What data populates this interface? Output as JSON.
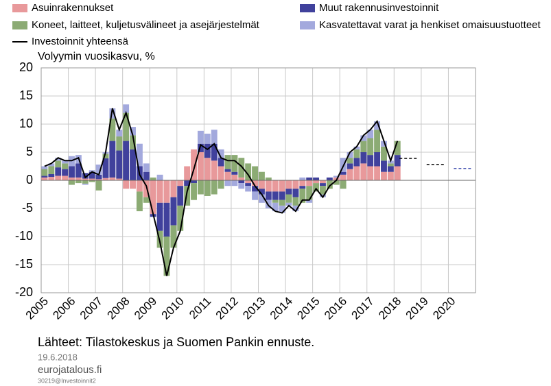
{
  "chart_data": {
    "type": "bar",
    "title": "Volyymin vuosikasvu, %",
    "x": [
      2005,
      2005.25,
      2005.5,
      2005.75,
      2006,
      2006.25,
      2006.5,
      2006.75,
      2007,
      2007.25,
      2007.5,
      2007.75,
      2008,
      2008.25,
      2008.5,
      2008.75,
      2009,
      2009.25,
      2009.5,
      2009.75,
      2010,
      2010.25,
      2010.5,
      2010.75,
      2011,
      2011.25,
      2011.5,
      2011.75,
      2012,
      2012.25,
      2012.5,
      2012.75,
      2013,
      2013.25,
      2013.5,
      2013.75,
      2014,
      2014.25,
      2014.5,
      2014.75,
      2015,
      2015.25,
      2015.5,
      2015.75,
      2016,
      2016.25,
      2016.5,
      2016.75,
      2017,
      2017.25,
      2017.5,
      2017.75,
      2018
    ],
    "series": [
      {
        "name": "Asuinrakennukset",
        "color": "#e8999b",
        "values": [
          0.5,
          0.6,
          0.8,
          0.8,
          0.5,
          0.5,
          0.3,
          0.3,
          0.2,
          0.4,
          0.5,
          0.3,
          -1.5,
          -1.5,
          -2,
          -3,
          -6,
          -4,
          -4,
          -3,
          -1,
          2.5,
          5.5,
          5,
          4,
          3.5,
          2.5,
          1.5,
          1,
          0.5,
          -0.5,
          -1,
          -1.5,
          -2,
          -2,
          -2,
          -1.5,
          -1.5,
          -1,
          -1,
          -0.5,
          -0.5,
          0,
          0.5,
          1,
          2,
          2.5,
          3,
          2.5,
          2.5,
          1.5,
          1.5,
          2.5
        ]
      },
      {
        "name": "Muut rakennusinvestoinnit",
        "color": "#40419c",
        "values": [
          0.3,
          0.5,
          1.5,
          1.2,
          2,
          2.5,
          1,
          1.2,
          0.8,
          3.5,
          6.5,
          5,
          7,
          5.5,
          2.5,
          1.5,
          -0.5,
          -5,
          -6,
          -5,
          -3.5,
          -1,
          -0.5,
          1.5,
          2.5,
          3,
          1.5,
          0.5,
          0.5,
          -0.5,
          -0.5,
          -1,
          -1,
          -1.5,
          -1.5,
          -1.5,
          -1,
          -1.5,
          -0.5,
          0.5,
          0.5,
          -0.5,
          0.5,
          0,
          0.5,
          1,
          1.5,
          2,
          2,
          2.5,
          2,
          1,
          2
        ]
      },
      {
        "name": "Koneet, laitteet, kuljetusvälineet ja asejärjestelmät",
        "color": "#8cab74",
        "values": [
          1.2,
          1.4,
          1.2,
          1,
          -0.8,
          -0.5,
          -0.6,
          -0.3,
          -1.8,
          0.8,
          4,
          2.5,
          5,
          2.5,
          -3.5,
          -1,
          0.5,
          -3,
          -7,
          -4,
          -4.5,
          -3.5,
          -3,
          -2.5,
          -2.8,
          -2.5,
          -1.5,
          2.5,
          3,
          3.5,
          3,
          2.5,
          1.5,
          0.5,
          -0.5,
          -1,
          -1.5,
          -1.5,
          -2.5,
          -2.5,
          -1.5,
          -1.5,
          -1.5,
          -0.8,
          -1.5,
          1,
          1.5,
          2,
          3,
          4,
          2.5,
          0.5,
          2.5
        ]
      },
      {
        "name": "Kasvatettavat varat ja henkiset omaisuustuotteet",
        "color": "#a3a9dd",
        "values": [
          0.5,
          0.5,
          0.5,
          0.5,
          1.8,
          1.5,
          -0.2,
          0.3,
          1.8,
          0.3,
          1.8,
          1.2,
          1.5,
          1.5,
          4,
          1.5,
          0,
          1,
          0,
          0,
          0,
          0,
          0,
          2.3,
          1.8,
          2.5,
          1.5,
          -1,
          -1,
          -1,
          -1,
          -1.5,
          -1.5,
          -1.5,
          -1.5,
          -1.3,
          -0.5,
          -1,
          0.5,
          -0.5,
          0,
          -0.5,
          0,
          0.3,
          2.5,
          1,
          0.5,
          1,
          1.5,
          1.5,
          1,
          0.5,
          0
        ]
      }
    ],
    "line": {
      "name": "Investoinnit yhteensä",
      "color": "#000000",
      "values": [
        2.5,
        3,
        4,
        3.5,
        3.5,
        4,
        0.5,
        1.5,
        1,
        5,
        12.8,
        9,
        12,
        8,
        1,
        -1,
        -6,
        -11,
        -17,
        -12,
        -9,
        -2,
        2,
        6.3,
        5.5,
        6.5,
        4,
        3.5,
        3.5,
        2.5,
        1,
        -1,
        -2.5,
        -4.5,
        -5.5,
        -5.8,
        -4.5,
        -5.5,
        -3.5,
        -3.5,
        -1.5,
        -3,
        -1,
        0,
        2.5,
        5,
        6,
        8,
        9,
        10.5,
        7,
        3.5,
        7
      ]
    },
    "forecast": {
      "x": [
        2018,
        2019,
        2020
      ],
      "values": [
        3.9,
        2.8,
        2.1
      ],
      "colors": [
        "#000000",
        "#000000",
        "#4a58b4"
      ]
    },
    "xlim": [
      2005,
      2021
    ],
    "xticks": [
      2005,
      2006,
      2007,
      2008,
      2009,
      2010,
      2011,
      2012,
      2013,
      2014,
      2015,
      2016,
      2017,
      2018,
      2019,
      2020
    ],
    "ylim": [
      -20,
      20
    ],
    "yticks": [
      -20,
      -15,
      -10,
      -5,
      0,
      5,
      10,
      15,
      20
    ],
    "grid": true,
    "source": "Lähteet: Tilastokeskus ja Suomen Pankin ennuste.",
    "date": "19.6.2018",
    "site": "eurojatalous.fi",
    "code": "30219@Investoinnit2"
  }
}
